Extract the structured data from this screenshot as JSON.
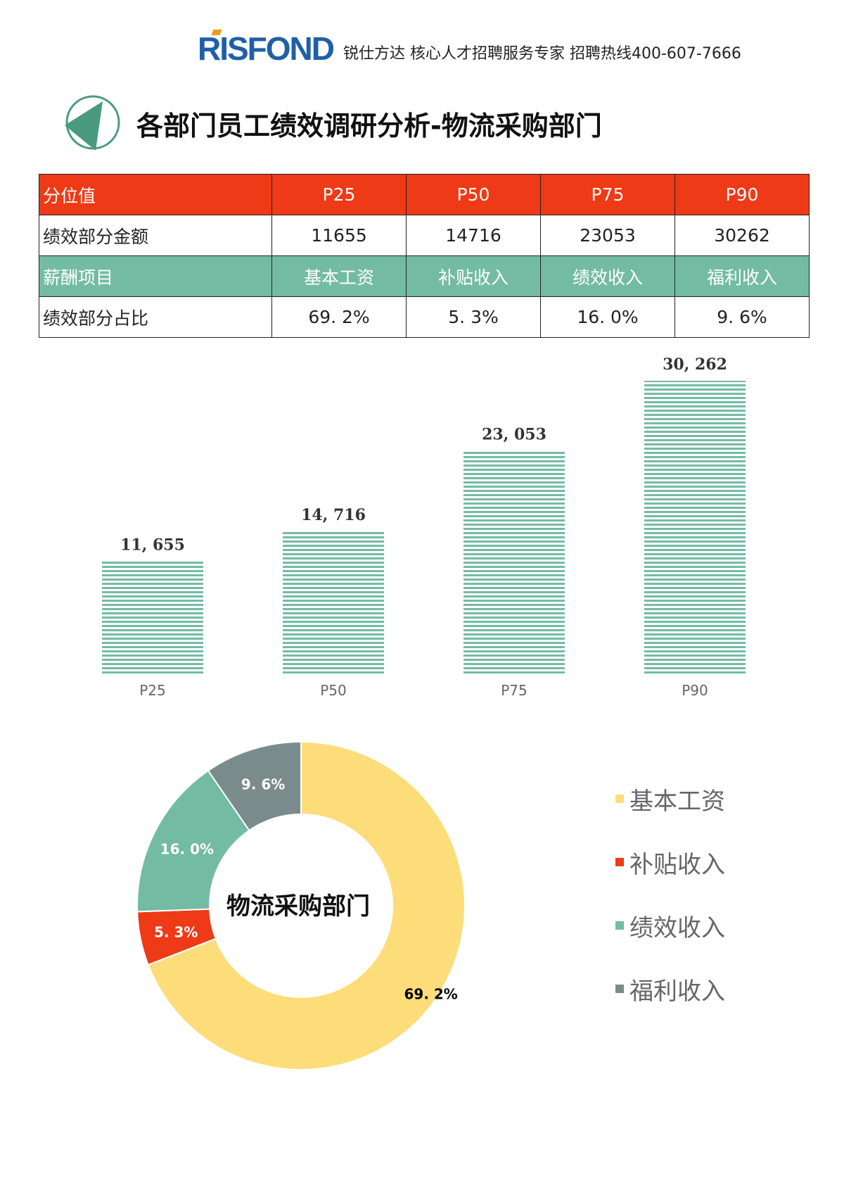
{
  "header": {
    "logo": "RISFOND",
    "tagline": "锐仕方达 核心人才招聘服务专家 招聘热线400-607-7666"
  },
  "title": "各部门员工绩效调研分析-物流采购部门",
  "table": {
    "rows": [
      {
        "style": "red",
        "cells": [
          "分位值",
          "P25",
          "P50",
          "P75",
          "P90"
        ]
      },
      {
        "style": "plain",
        "cells": [
          "绩效部分金额",
          "11655",
          "14716",
          "23053",
          "30262"
        ]
      },
      {
        "style": "green",
        "cells": [
          "薪酬项目",
          "基本工资",
          "补贴收入",
          "绩效收入",
          "福利收入"
        ]
      },
      {
        "style": "plain",
        "cells": [
          "绩效部分占比",
          "69. 2%",
          "5. 3%",
          "16. 0%",
          "9. 6%"
        ]
      }
    ]
  },
  "colors": {
    "red": "#ee3a16",
    "green": "#74bba4",
    "yellow": "#fcdd7a",
    "gray": "#7a8b8b"
  },
  "chart_data": [
    {
      "type": "bar",
      "title": "",
      "categories": [
        "P25",
        "P50",
        "P75",
        "P90"
      ],
      "values": [
        11655,
        14716,
        23053,
        30262
      ],
      "data_labels": [
        "11, 655",
        "14, 716",
        "23, 053",
        "30, 262"
      ],
      "ylim": [
        0,
        30262
      ],
      "grid": false,
      "color": "#74bba4"
    },
    {
      "type": "pie",
      "donut": true,
      "center_label": "物流采购部门",
      "categories": [
        "基本工资",
        "补贴收入",
        "绩效收入",
        "福利收入"
      ],
      "values": [
        69.2,
        5.3,
        16.0,
        9.6
      ],
      "data_labels": [
        "69. 2%",
        "5. 3%",
        "16. 0%",
        "9. 6%"
      ],
      "colors": [
        "#fcdd7a",
        "#ee3a16",
        "#74bba4",
        "#7a8b8b"
      ],
      "label_colors": [
        "#000",
        "#fff",
        "#fff",
        "#fff"
      ],
      "legend": "right"
    }
  ]
}
